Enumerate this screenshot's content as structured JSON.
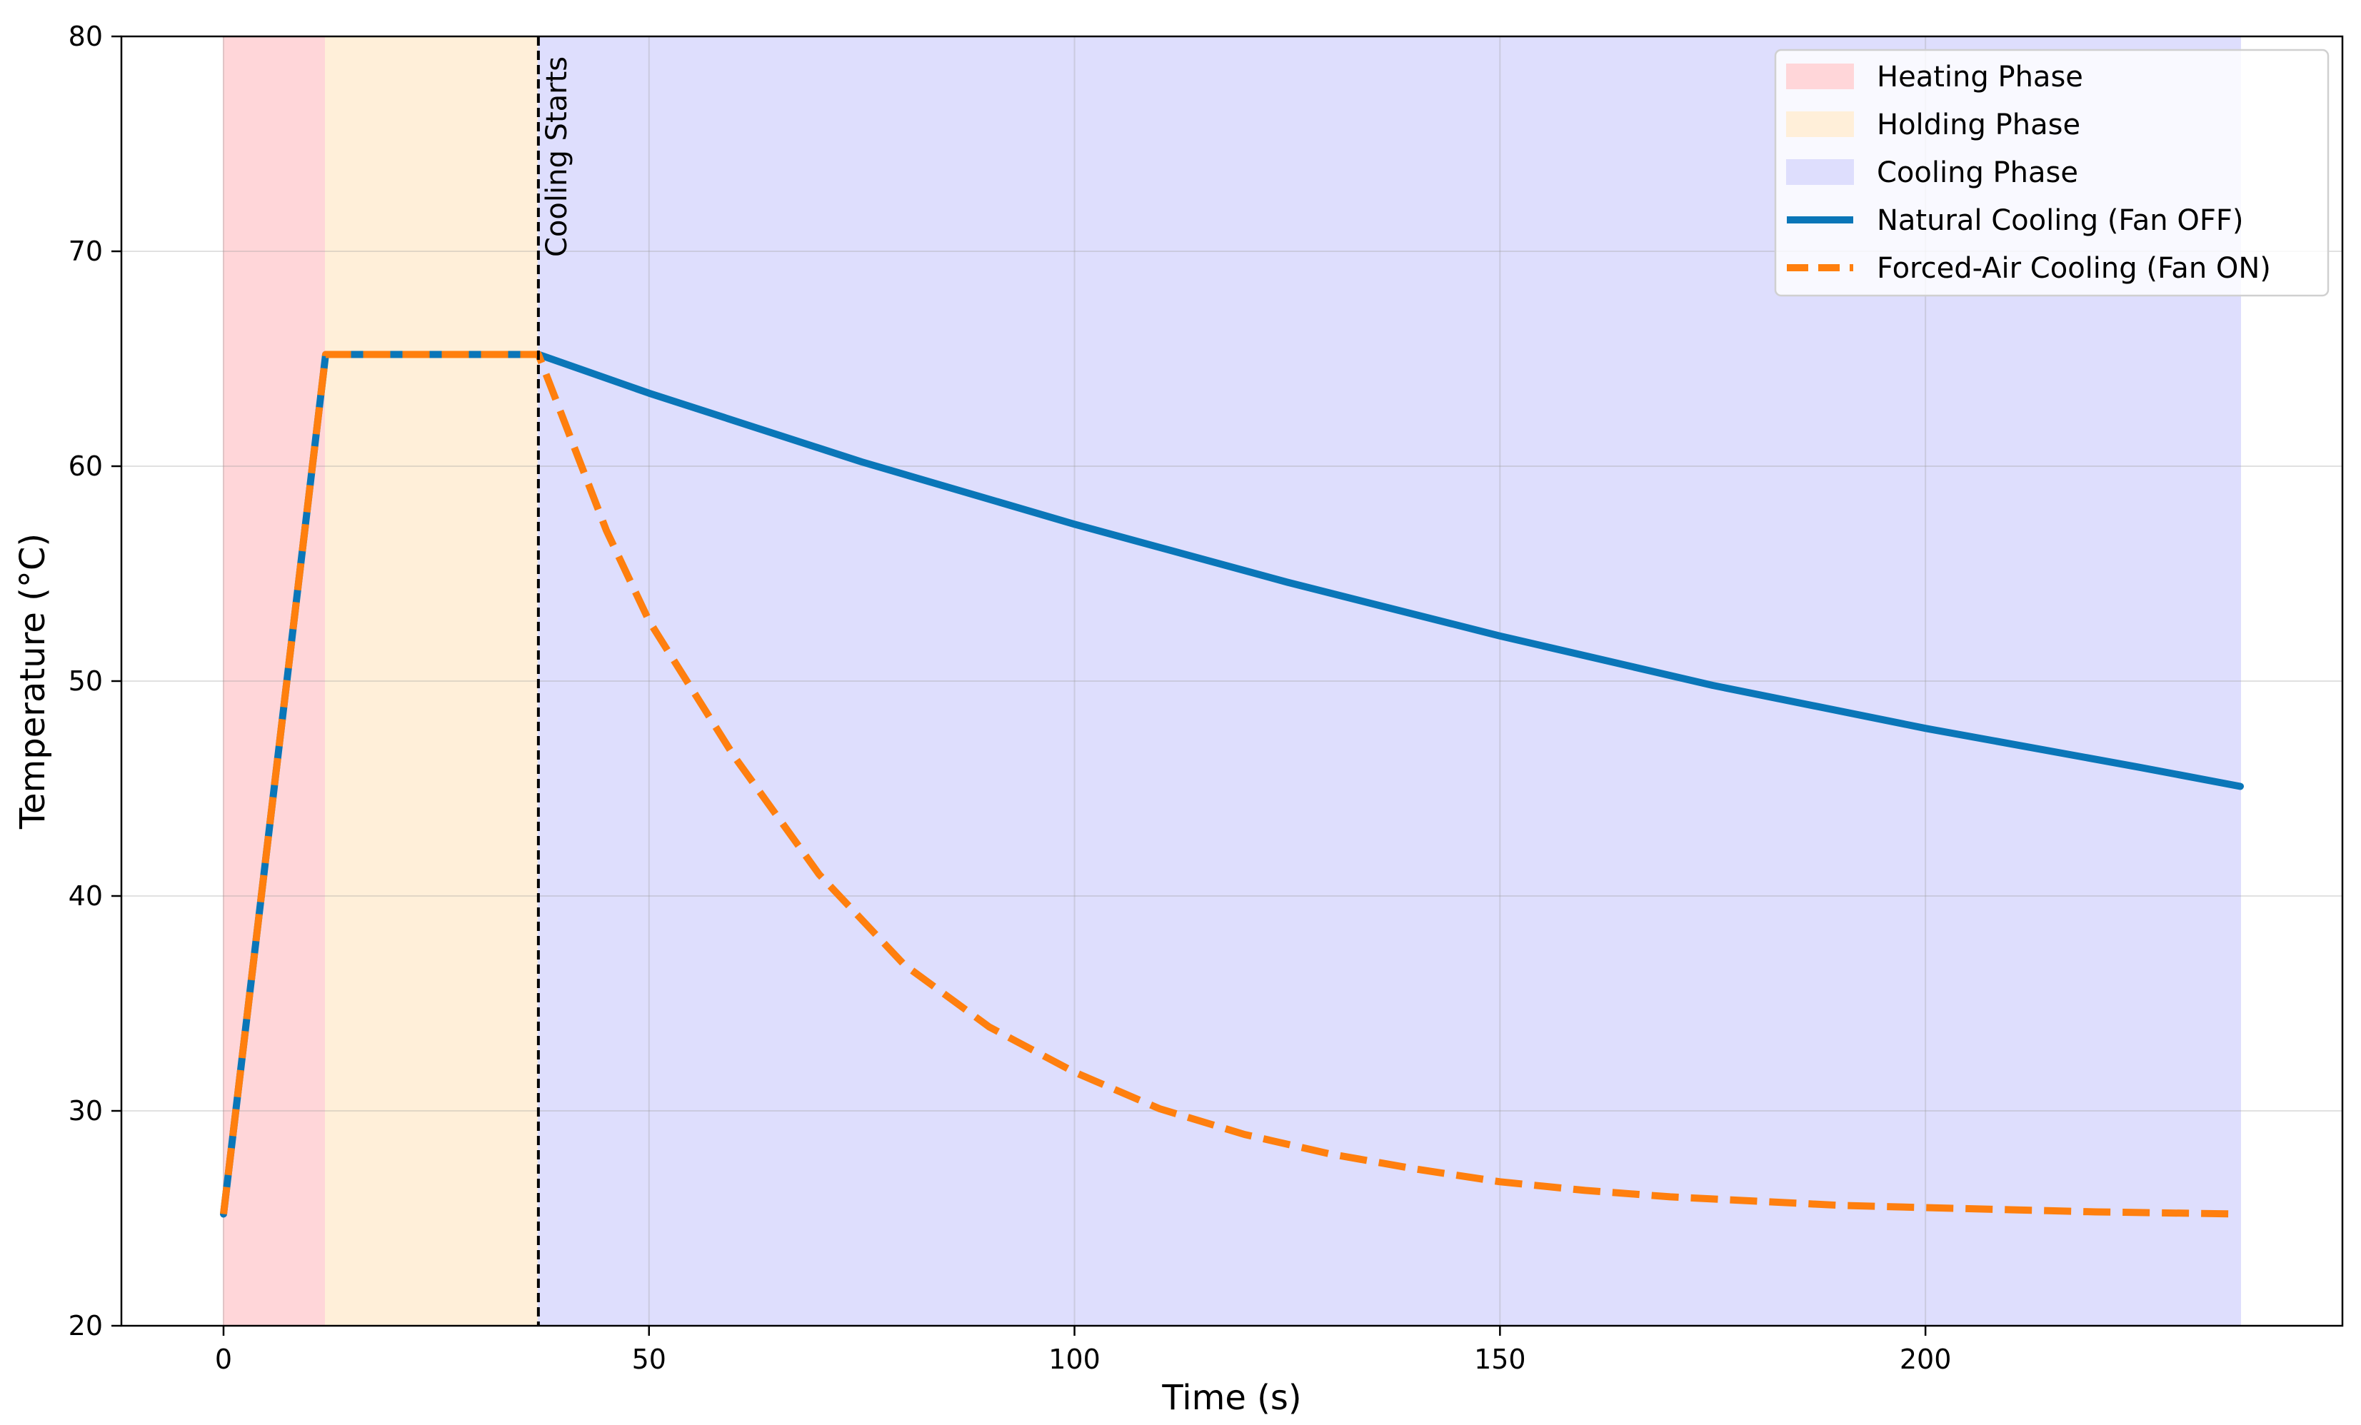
{
  "chart_data": {
    "type": "line",
    "title": "",
    "xlabel": "Time (s)",
    "ylabel": "Temperature (°C)",
    "xlim": [
      -12,
      249
    ],
    "ylim": [
      20,
      80
    ],
    "xticks": [
      0,
      50,
      100,
      150,
      200
    ],
    "yticks": [
      20,
      30,
      40,
      50,
      60,
      70,
      80
    ],
    "grid": true,
    "legend_position": "top-right",
    "phases": [
      {
        "name": "Heating Phase",
        "start": 0,
        "end": 12,
        "color": "#ffd6d9"
      },
      {
        "name": "Holding Phase",
        "start": 12,
        "end": 37,
        "color": "#ffefd9"
      },
      {
        "name": "Cooling Phase",
        "start": 37,
        "end": 237,
        "color": "#dedefd"
      }
    ],
    "annotation": {
      "x": 37,
      "text": "Cooling Starts"
    },
    "series": [
      {
        "name": "Natural Cooling (Fan OFF)",
        "color": "#0a76b8",
        "style": "solid",
        "x": [
          0,
          12,
          37,
          50,
          75,
          100,
          125,
          150,
          175,
          200,
          225,
          237
        ],
        "y": [
          25.2,
          65.2,
          65.2,
          63.4,
          60.2,
          57.3,
          54.6,
          52.1,
          49.8,
          47.8,
          46.0,
          45.1
        ]
      },
      {
        "name": "Forced-Air Cooling (Fan ON)",
        "color": "#ff7f0e",
        "style": "dashed",
        "x": [
          0,
          12,
          37,
          45,
          50,
          60,
          70,
          80,
          90,
          100,
          110,
          120,
          130,
          140,
          150,
          160,
          170,
          180,
          190,
          200,
          210,
          220,
          237
        ],
        "y": [
          25.2,
          65.2,
          65.2,
          57.0,
          52.8,
          46.5,
          41.0,
          36.8,
          33.9,
          31.8,
          30.1,
          28.9,
          28.0,
          27.3,
          26.7,
          26.3,
          26.0,
          25.8,
          25.6,
          25.5,
          25.4,
          25.3,
          25.2
        ]
      }
    ]
  }
}
